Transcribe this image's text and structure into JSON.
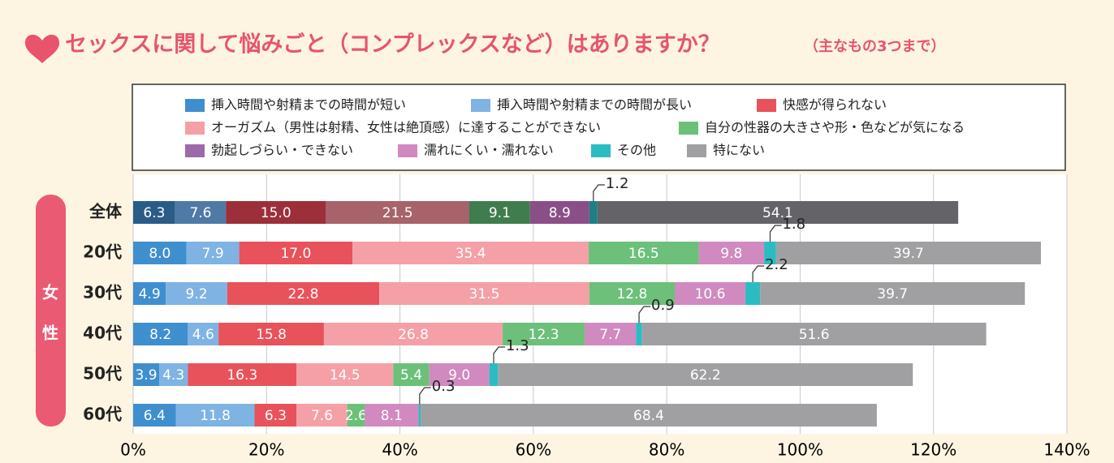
{
  "chart_data": {
    "type": "stacked_bar_horizontal",
    "title": "セックスに関して悩みごと（コンプレックスなど）はありますか？",
    "subtitle": "（主なもの3つまで）",
    "group_label": "女性",
    "categories": [
      "全体",
      "20代",
      "30代",
      "40代",
      "50代",
      "60代"
    ],
    "xlim": [
      0,
      140
    ],
    "xticks": [
      {
        "value": 0,
        "label": "0%"
      },
      {
        "value": 20,
        "label": "20%"
      },
      {
        "value": 40,
        "label": "40%"
      },
      {
        "value": 60,
        "label": "60%"
      },
      {
        "value": 80,
        "label": "80%"
      },
      {
        "value": 100,
        "label": "100%"
      },
      {
        "value": 120,
        "label": "120%"
      },
      {
        "value": 140,
        "label": "140%"
      }
    ],
    "grid": true,
    "series": [
      {
        "name": "挿入時間や射精までの時間が短い",
        "color": "#3f8fcf",
        "dark_color": "#2a5c88",
        "values": [
          6.3,
          8.0,
          4.9,
          8.2,
          3.9,
          6.4
        ],
        "value_labels": [
          "6.3",
          "8.0",
          "4.9",
          "8.2",
          "3.9",
          "6.4"
        ]
      },
      {
        "name": "挿入時間や射精までの時間が長い",
        "color": "#7fb3e3",
        "dark_color": "#4f7aa6",
        "values": [
          7.6,
          7.9,
          9.2,
          4.6,
          4.3,
          11.8
        ],
        "value_labels": [
          "7.6",
          "7.9",
          "9.2",
          "4.6",
          "4.3",
          "11.8"
        ]
      },
      {
        "name": "快感が得られない",
        "color": "#e8525a",
        "dark_color": "#9c2f3a",
        "values": [
          15.0,
          17.0,
          22.8,
          15.8,
          16.3,
          6.3
        ],
        "value_labels": [
          "15.0",
          "17.0",
          "22.8",
          "15.8",
          "16.3",
          "6.3"
        ]
      },
      {
        "name": "オーガズム（男性は射精、女性は絶頂感）に達することができない",
        "color": "#f4a0a6",
        "dark_color": "#a8626a",
        "values": [
          21.5,
          35.4,
          31.5,
          26.8,
          14.5,
          7.6
        ],
        "value_labels": [
          "21.5",
          "35.4",
          "31.5",
          "26.8",
          "14.5",
          "7.6"
        ]
      },
      {
        "name": "自分の性器の大きさや形・色などが気になる",
        "color": "#6cc07a",
        "dark_color": "#3f7d4e",
        "values": [
          9.1,
          16.5,
          12.8,
          12.3,
          5.4,
          2.6
        ],
        "value_labels": [
          "9.1",
          "16.5",
          "12.8",
          "12.3",
          "5.4",
          "2.6"
        ]
      },
      {
        "name": "勃起しづらい・できない",
        "color": "#9c6aa8",
        "dark_color": "#6a4775",
        "values": [
          null,
          null,
          null,
          null,
          null,
          null
        ],
        "value_labels": [
          null,
          null,
          null,
          null,
          null,
          null
        ]
      },
      {
        "name": "濡れにくい・濡れない",
        "color": "#d08ac0",
        "dark_color": "#8a4f86",
        "values": [
          8.9,
          9.8,
          10.6,
          7.7,
          9.0,
          8.1
        ],
        "value_labels": [
          "8.9",
          "9.8",
          "10.6",
          "7.7",
          "9.0",
          "8.1"
        ]
      },
      {
        "name": "その他",
        "color": "#2bbcc2",
        "dark_color": "#1d7f85",
        "values": [
          1.2,
          1.8,
          2.2,
          0.9,
          1.3,
          0.3
        ],
        "value_labels": [
          "1.2",
          "1.8",
          "2.2",
          "0.9",
          "1.3",
          "0.3"
        ]
      },
      {
        "name": "特にない",
        "color": "#a0a0a3",
        "dark_color": "#646468",
        "values": [
          54.1,
          39.7,
          39.7,
          51.6,
          62.2,
          68.4
        ],
        "value_labels": [
          "54.1",
          "39.7",
          "39.7",
          "51.6",
          "62.2",
          "68.4"
        ]
      }
    ]
  }
}
